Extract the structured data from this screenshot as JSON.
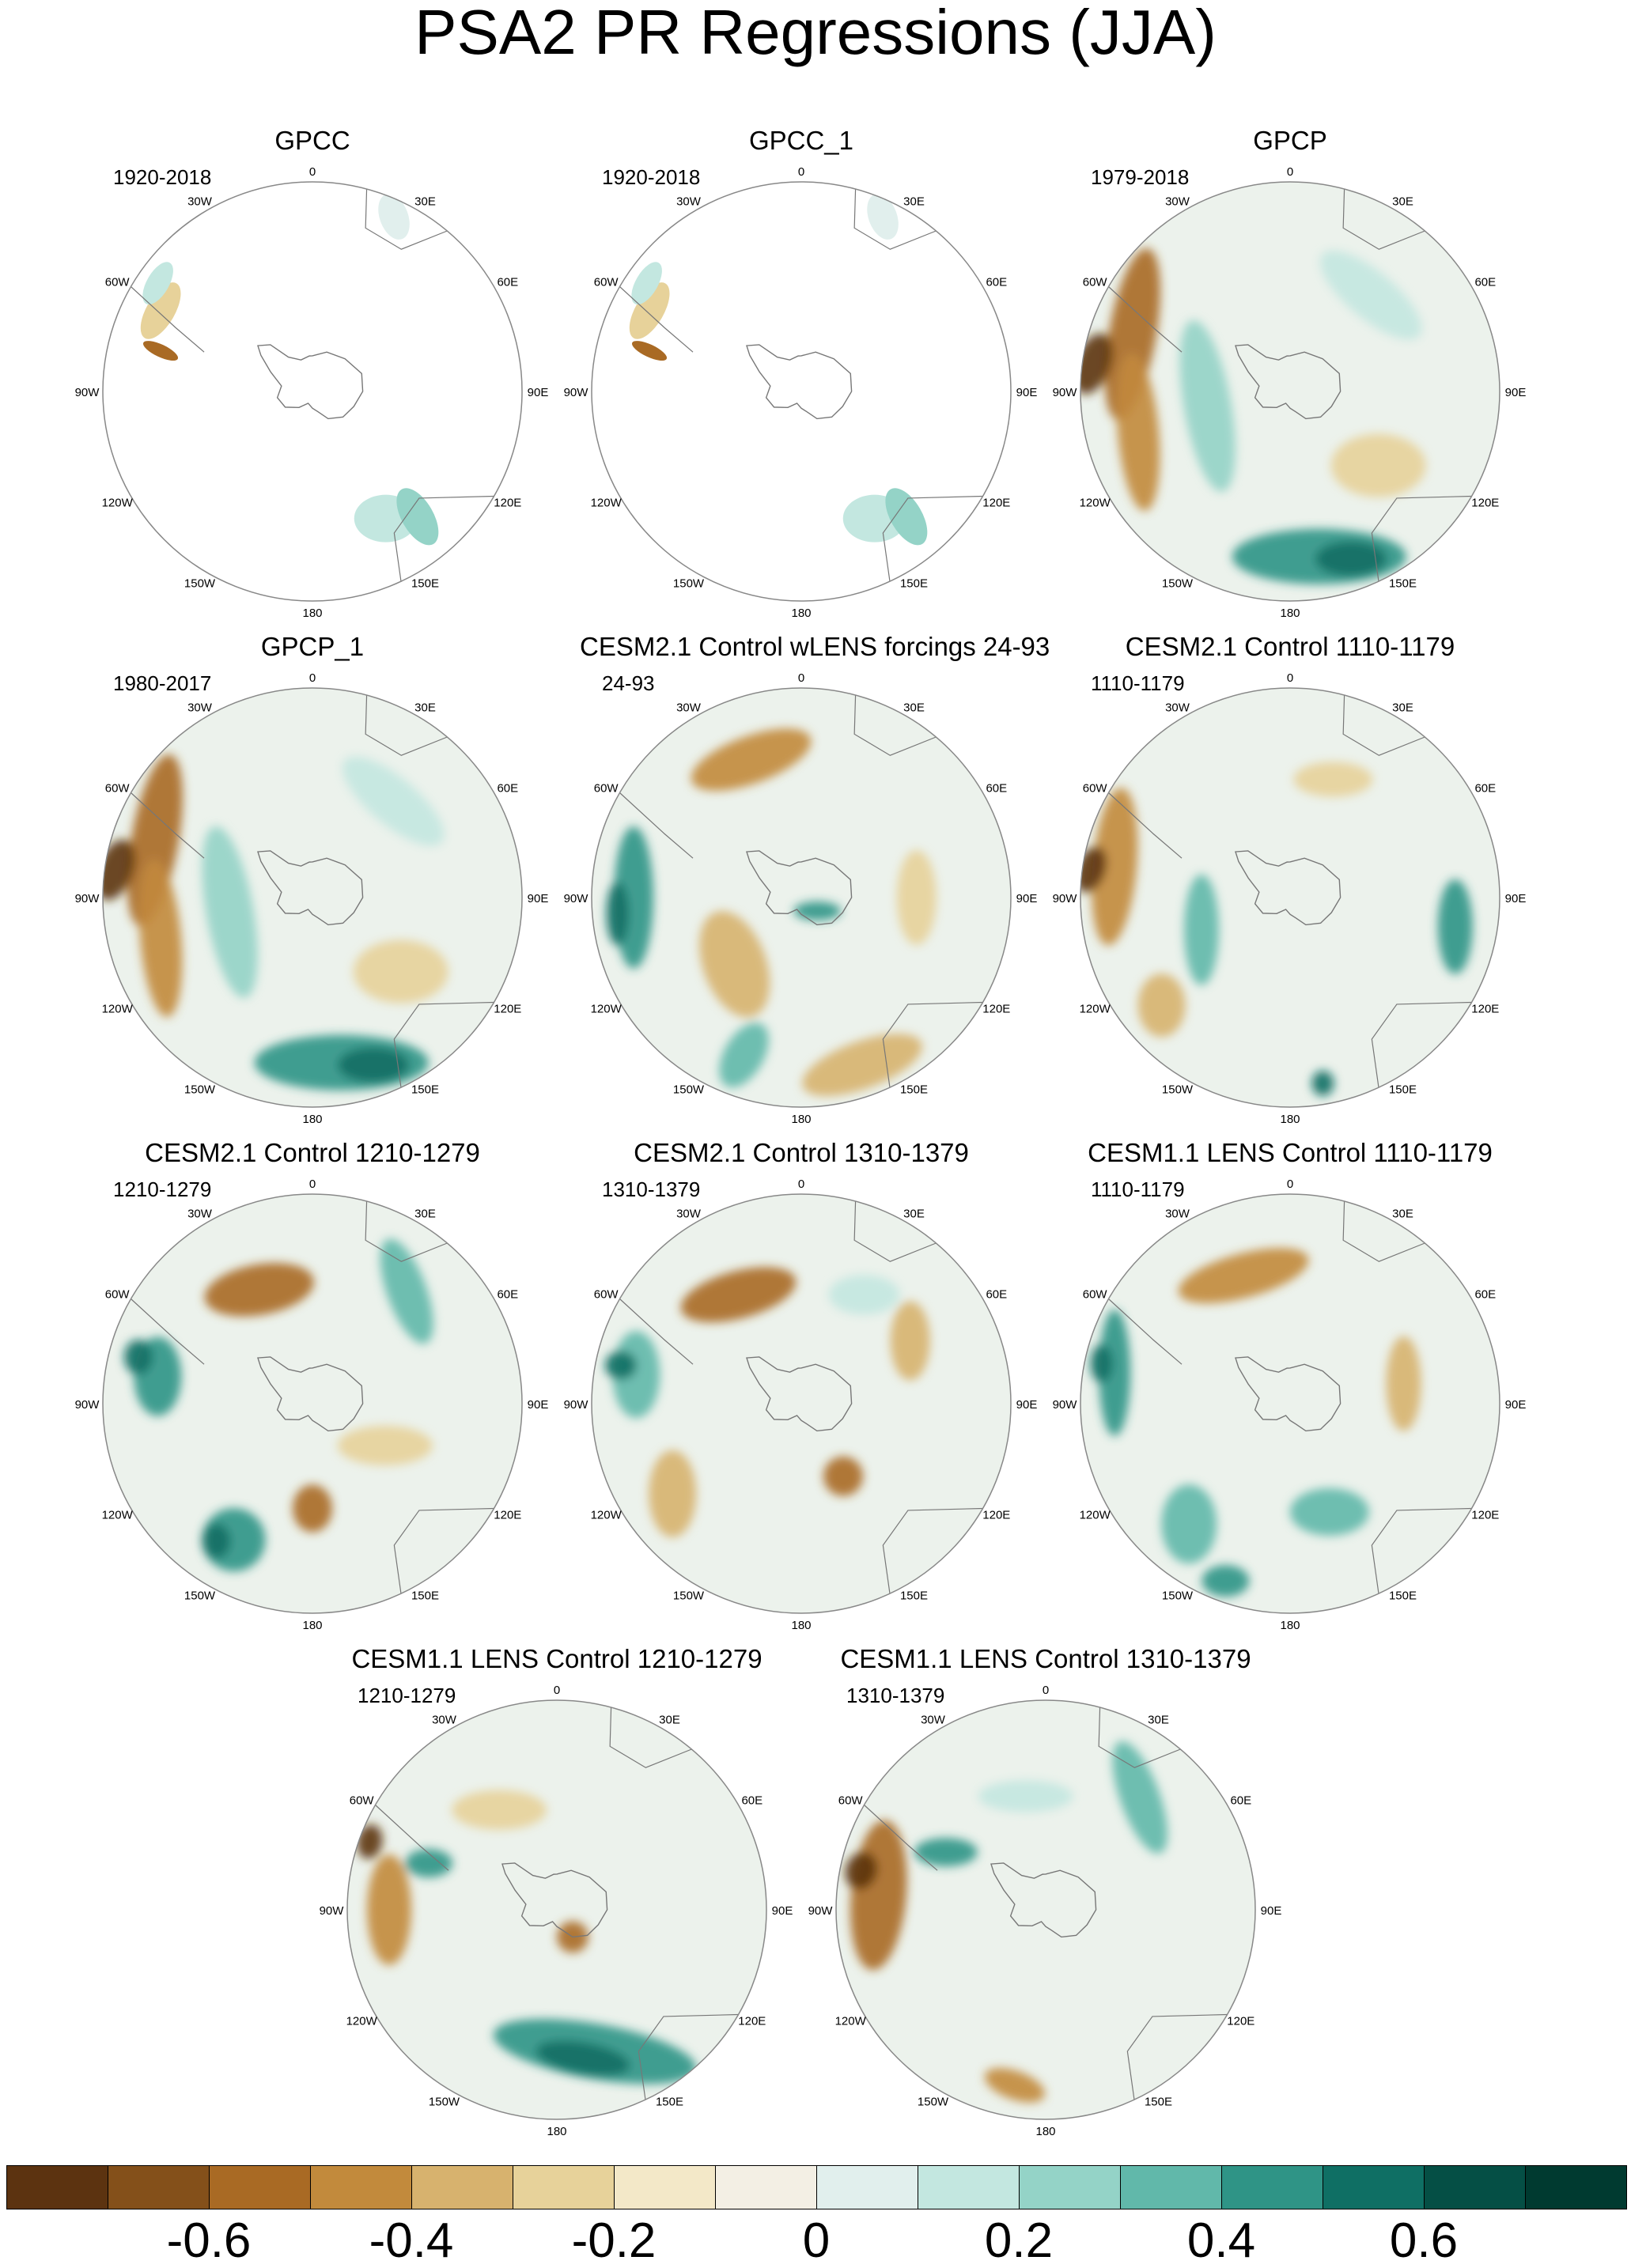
{
  "figure": {
    "title": "PSA2 PR Regressions (JJA)",
    "lon_labels": [
      "0",
      "30E",
      "60E",
      "90E",
      "120E",
      "150E",
      "180",
      "150W",
      "120W",
      "90W",
      "60W",
      "30W"
    ]
  },
  "panels": [
    {
      "title": "GPCC",
      "period": "1920-2018",
      "fill": "sparse",
      "pattern": 0
    },
    {
      "title": "GPCC_1",
      "period": "1920-2018",
      "fill": "sparse",
      "pattern": 0
    },
    {
      "title": "GPCP",
      "period": "1979-2018",
      "fill": "full",
      "pattern": 1
    },
    {
      "title": "GPCP_1",
      "period": "1980-2017",
      "fill": "full",
      "pattern": 1
    },
    {
      "title": "CESM2.1 Control wLENS forcings 24-93",
      "period": "24-93",
      "fill": "full",
      "pattern": 2
    },
    {
      "title": "CESM2.1 Control 1110-1179",
      "period": "1110-1179",
      "fill": "full",
      "pattern": 3
    },
    {
      "title": "CESM2.1 Control 1210-1279",
      "period": "1210-1279",
      "fill": "full",
      "pattern": 4
    },
    {
      "title": "CESM2.1 Control 1310-1379",
      "period": "1310-1379",
      "fill": "full",
      "pattern": 5
    },
    {
      "title": "CESM1.1 LENS Control 1110-1179",
      "period": "1110-1179",
      "fill": "full",
      "pattern": 6
    },
    {
      "title": "CESM1.1 LENS Control 1210-1279",
      "period": "1210-1279",
      "fill": "full",
      "pattern": 7
    },
    {
      "title": "CESM1.1 LENS Control 1310-1379",
      "period": "1310-1379",
      "fill": "full",
      "pattern": 8
    }
  ],
  "colorbar": {
    "colors": [
      "#5c3310",
      "#84501a",
      "#a96a24",
      "#c28a3c",
      "#d7b26e",
      "#e7d29a",
      "#f3e8c8",
      "#f3efe4",
      "#e1efed",
      "#c3e7e0",
      "#94d3c7",
      "#61b8aa",
      "#2f9486",
      "#0f6f64",
      "#054f45",
      "#003a30"
    ],
    "tick_labels": [
      "-0.6",
      "-0.4",
      "-0.2",
      "0",
      "0.2",
      "0.4",
      "0.6"
    ],
    "tick_values": [
      -0.6,
      -0.4,
      -0.2,
      0,
      0.2,
      0.4,
      0.6
    ],
    "min": -0.8,
    "max": 0.8
  }
}
